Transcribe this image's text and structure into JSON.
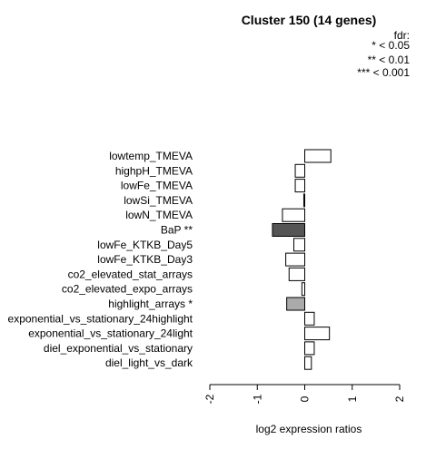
{
  "chart_data": {
    "type": "bar",
    "orientation": "horizontal",
    "title": "Cluster 150 (14 genes)",
    "xlabel": "log2 expression ratios",
    "ylabel": "",
    "xlim": [
      -2,
      2
    ],
    "x_ticks": [
      "-2",
      "-1",
      "0",
      "1",
      "2"
    ],
    "legend": {
      "title": "fdr:",
      "entries": [
        "* < 0.05",
        "** < 0.01",
        "*** < 0.001"
      ],
      "placement": "top-right"
    },
    "categories": [
      "lowtemp_TMEVA",
      "highpH_TMEVA",
      "lowFe_TMEVA",
      "lowSi_TMEVA",
      "lowN_TMEVA",
      "BaP **",
      "lowFe_KTKB_Day5",
      "lowFe_KTKB_Day3",
      "co2_elevated_stat_arrays",
      "co2_elevated_expo_arrays",
      "highlight_arrays *",
      "exponential_vs_stationary_24highlight",
      "exponential_vs_stationary_24light",
      "diel_exponential_vs_stationary",
      "diel_light_vs_dark"
    ],
    "values": [
      0.55,
      -0.2,
      -0.2,
      -0.02,
      -0.47,
      -0.68,
      -0.23,
      -0.4,
      -0.33,
      -0.06,
      -0.38,
      0.2,
      0.52,
      0.2,
      0.14
    ],
    "colors": [
      "#ffffff",
      "#ffffff",
      "#ffffff",
      "#ffffff",
      "#ffffff",
      "#555555",
      "#ffffff",
      "#ffffff",
      "#ffffff",
      "#ffffff",
      "#aaaaaa",
      "#ffffff",
      "#ffffff",
      "#ffffff",
      "#ffffff"
    ],
    "grid": false
  }
}
